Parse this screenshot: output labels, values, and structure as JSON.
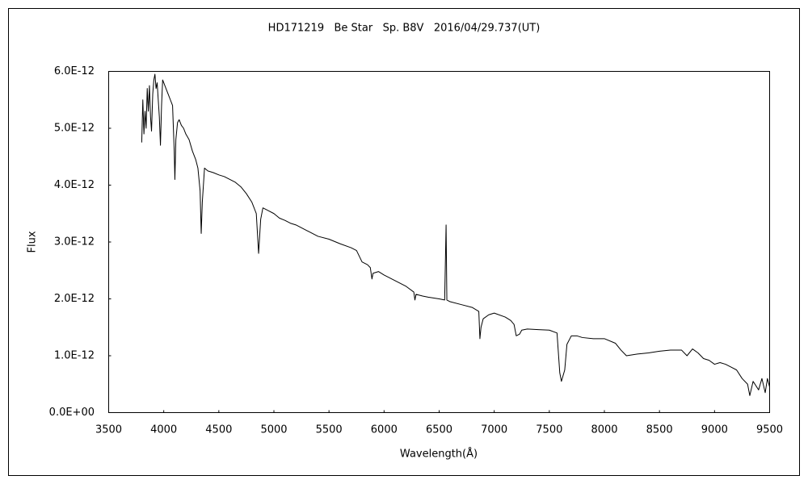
{
  "chart_data": {
    "type": "line",
    "title": "HD171219   Be Star   Sp. B8V   2016/04/29.737(UT)",
    "x_label": "Wavelength(Å)",
    "y_label": "Flux",
    "color": "#000000",
    "xlim": [
      3500,
      9500
    ],
    "xticks": [
      3500,
      4000,
      4500,
      5000,
      5500,
      6000,
      6500,
      7000,
      7500,
      8000,
      8500,
      9000,
      9500
    ],
    "ylim": [
      0,
      6e-12
    ],
    "yticks": [
      {
        "value": 0,
        "label": "0.0E+00"
      },
      {
        "value": 1e-12,
        "label": "1.0E-12"
      },
      {
        "value": 2e-12,
        "label": "2.0E-12"
      },
      {
        "value": 3e-12,
        "label": "3.0E-12"
      },
      {
        "value": 4e-12,
        "label": "4.0E-12"
      },
      {
        "value": 5e-12,
        "label": "5.0E-12"
      },
      {
        "value": 6e-12,
        "label": "6.0E-12"
      }
    ],
    "grid": false,
    "x": [
      3800,
      3810,
      3820,
      3830,
      3840,
      3850,
      3860,
      3870,
      3880,
      3889,
      3900,
      3910,
      3920,
      3930,
      3940,
      3950,
      3960,
      3970,
      3980,
      3990,
      4000,
      4020,
      4040,
      4060,
      4080,
      4095,
      4101,
      4110,
      4125,
      4140,
      4160,
      4180,
      4200,
      4230,
      4260,
      4290,
      4310,
      4330,
      4340,
      4350,
      4370,
      4400,
      4450,
      4500,
      4550,
      4600,
      4650,
      4700,
      4750,
      4800,
      4840,
      4861,
      4880,
      4900,
      4950,
      5000,
      5050,
      5100,
      5150,
      5200,
      5300,
      5400,
      5500,
      5600,
      5700,
      5750,
      5800,
      5850,
      5875,
      5890,
      5900,
      5950,
      6000,
      6100,
      6200,
      6270,
      6280,
      6290,
      6350,
      6400,
      6500,
      6550,
      6563,
      6570,
      6600,
      6700,
      6800,
      6860,
      6870,
      6880,
      6900,
      6950,
      7000,
      7100,
      7150,
      7180,
      7200,
      7230,
      7250,
      7300,
      7400,
      7500,
      7570,
      7595,
      7610,
      7640,
      7660,
      7700,
      7750,
      7800,
      7900,
      8000,
      8100,
      8150,
      8200,
      8300,
      8400,
      8500,
      8600,
      8700,
      8750,
      8800,
      8850,
      8900,
      8950,
      9000,
      9050,
      9100,
      9150,
      9200,
      9250,
      9300,
      9320,
      9350,
      9400,
      9430,
      9460,
      9480,
      9500
    ],
    "values": [
      4.75e-12,
      5.5e-12,
      4.9e-12,
      5.3e-12,
      5e-12,
      5.7e-12,
      5.3e-12,
      5.75e-12,
      5.2e-12,
      4.95e-12,
      5.6e-12,
      5.85e-12,
      5.95e-12,
      5.7e-12,
      5.8e-12,
      5.5e-12,
      5.2e-12,
      4.7e-12,
      5.4e-12,
      5.85e-12,
      5.8e-12,
      5.7e-12,
      5.6e-12,
      5.5e-12,
      5.4e-12,
      4.6e-12,
      4.1e-12,
      4.8e-12,
      5.1e-12,
      5.15e-12,
      5.05e-12,
      5e-12,
      4.9e-12,
      4.8e-12,
      4.6e-12,
      4.45e-12,
      4.3e-12,
      3.9e-12,
      3.15e-12,
      3.7e-12,
      4.3e-12,
      4.25e-12,
      4.22e-12,
      4.18e-12,
      4.15e-12,
      4.1e-12,
      4.05e-12,
      3.97e-12,
      3.85e-12,
      3.7e-12,
      3.5e-12,
      2.8e-12,
      3.4e-12,
      3.6e-12,
      3.55e-12,
      3.5e-12,
      3.42e-12,
      3.38e-12,
      3.33e-12,
      3.3e-12,
      3.2e-12,
      3.1e-12,
      3.05e-12,
      2.97e-12,
      2.9e-12,
      2.85e-12,
      2.65e-12,
      2.6e-12,
      2.55e-12,
      2.35e-12,
      2.45e-12,
      2.48e-12,
      2.42e-12,
      2.32e-12,
      2.22e-12,
      2.12e-12,
      1.98e-12,
      2.08e-12,
      2.05e-12,
      2.03e-12,
      2e-12,
      1.98e-12,
      3.3e-12,
      1.98e-12,
      1.95e-12,
      1.9e-12,
      1.85e-12,
      1.78e-12,
      1.3e-12,
      1.5e-12,
      1.65e-12,
      1.72e-12,
      1.75e-12,
      1.68e-12,
      1.62e-12,
      1.55e-12,
      1.35e-12,
      1.38e-12,
      1.45e-12,
      1.47e-12,
      1.46e-12,
      1.45e-12,
      1.4e-12,
      7e-13,
      5.5e-13,
      7.5e-13,
      1.2e-12,
      1.35e-12,
      1.35e-12,
      1.32e-12,
      1.3e-12,
      1.3e-12,
      1.22e-12,
      1.1e-12,
      1e-12,
      1.03e-12,
      1.05e-12,
      1.08e-12,
      1.1e-12,
      1.1e-12,
      1e-12,
      1.12e-12,
      1.05e-12,
      9.5e-13,
      9.2e-13,
      8.5e-13,
      8.8e-13,
      8.5e-13,
      8e-13,
      7.5e-13,
      6e-13,
      5e-13,
      3e-13,
      5.5e-13,
      4e-13,
      6e-13,
      3.5e-13,
      6e-13,
      4.5e-13
    ]
  }
}
